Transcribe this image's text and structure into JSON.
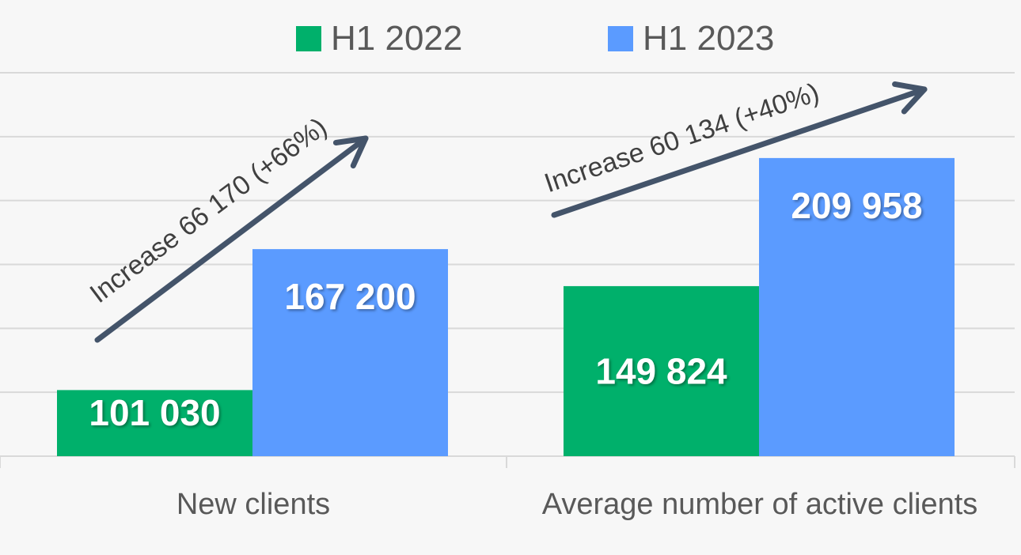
{
  "chart_data": {
    "type": "bar",
    "title": "",
    "categories": [
      "New clients",
      "Average number of active clients"
    ],
    "series": [
      {
        "name": "H1 2022",
        "color": "#00b06b",
        "values": [
          101030,
          149824
        ],
        "labels": [
          "101 030",
          "149 824"
        ]
      },
      {
        "name": "H1 2023",
        "color": "#5b9bff",
        "values": [
          167200,
          209958
        ],
        "labels": [
          "167 200",
          "209 958"
        ]
      }
    ],
    "ylim": [
      70000,
      250000
    ],
    "ystep": 30000,
    "grid": true,
    "legend": "top-center",
    "annotations": [
      "Increase 66 170 (+66%)",
      "Increase 60 134 (+40%)"
    ],
    "arrow_color": "#44546a",
    "xlabel": "",
    "ylabel": ""
  }
}
